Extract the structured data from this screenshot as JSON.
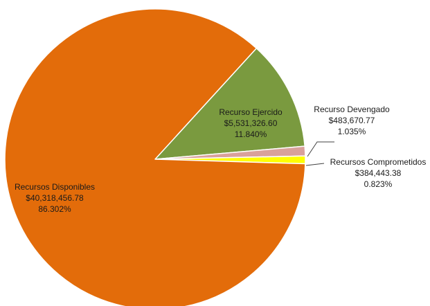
{
  "chart_data": {
    "type": "pie",
    "title": "",
    "series": [
      {
        "values": [
          5531326.6,
          483670.77,
          384443.38,
          40318456.78
        ]
      }
    ],
    "categories": [
      "Recurso Ejercido",
      "Recurso Devengado",
      "Recursos Comprometidos",
      "Recursos Disponibles"
    ],
    "slices": [
      {
        "name": "Recurso Ejercido",
        "value": 5531326.6,
        "value_label": "$5,531,326.60",
        "percent": 11.84,
        "percent_label": "11.840%",
        "color": "#7a9a3f"
      },
      {
        "name": "Recurso Devengado",
        "value": 483670.77,
        "value_label": "$483,670.77",
        "percent": 1.035,
        "percent_label": "1.035%",
        "color": "#d9a19b"
      },
      {
        "name": "Recursos Comprometidos",
        "value": 384443.38,
        "value_label": "$384,443.38",
        "percent": 0.823,
        "percent_label": "0.823%",
        "color": "#ffff00"
      },
      {
        "name": "Recursos Disponibles",
        "value": 40318456.78,
        "value_label": "$40,318,456.78",
        "percent": 86.302,
        "percent_label": "86.302%",
        "color": "#e36c0a"
      }
    ],
    "legend": "none",
    "start_angle_deg": 42.4,
    "direction": "clockwise"
  }
}
